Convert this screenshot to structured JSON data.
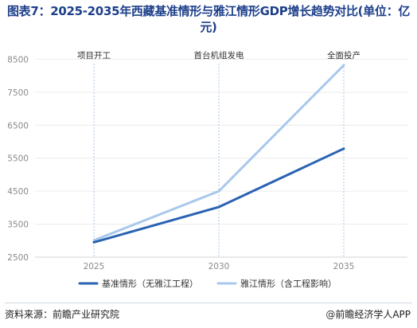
{
  "title": "图表7：2025-2035年西藏基准情形与雅江情形GDP增长趋势对比(单位：亿元)",
  "chart_data": {
    "type": "line",
    "x": [
      2025,
      2030,
      2035
    ],
    "y_ticks": [
      2500,
      3500,
      4500,
      5500,
      6500,
      7500,
      8500
    ],
    "ylim": [
      2500,
      8800
    ],
    "grid": true,
    "legend_position": "bottom",
    "series": [
      {
        "name": "基准情形（无雅江工程）",
        "values": [
          2950,
          4020,
          5790
        ],
        "color": "#2a63b3"
      },
      {
        "name": "雅江情形（含工程影响）",
        "values": [
          3010,
          4500,
          8320
        ],
        "color": "#a9c8ec"
      }
    ],
    "phase_markers": [
      {
        "x": 2025,
        "label": "项目开工"
      },
      {
        "x": 2030,
        "label": "首台机组发电"
      },
      {
        "x": 2035,
        "label": "全面投产"
      }
    ]
  },
  "footer": {
    "source": "资料来源：前瞻产业研究院",
    "brand": "前瞻经济学人APP",
    "brand_at": "@"
  }
}
